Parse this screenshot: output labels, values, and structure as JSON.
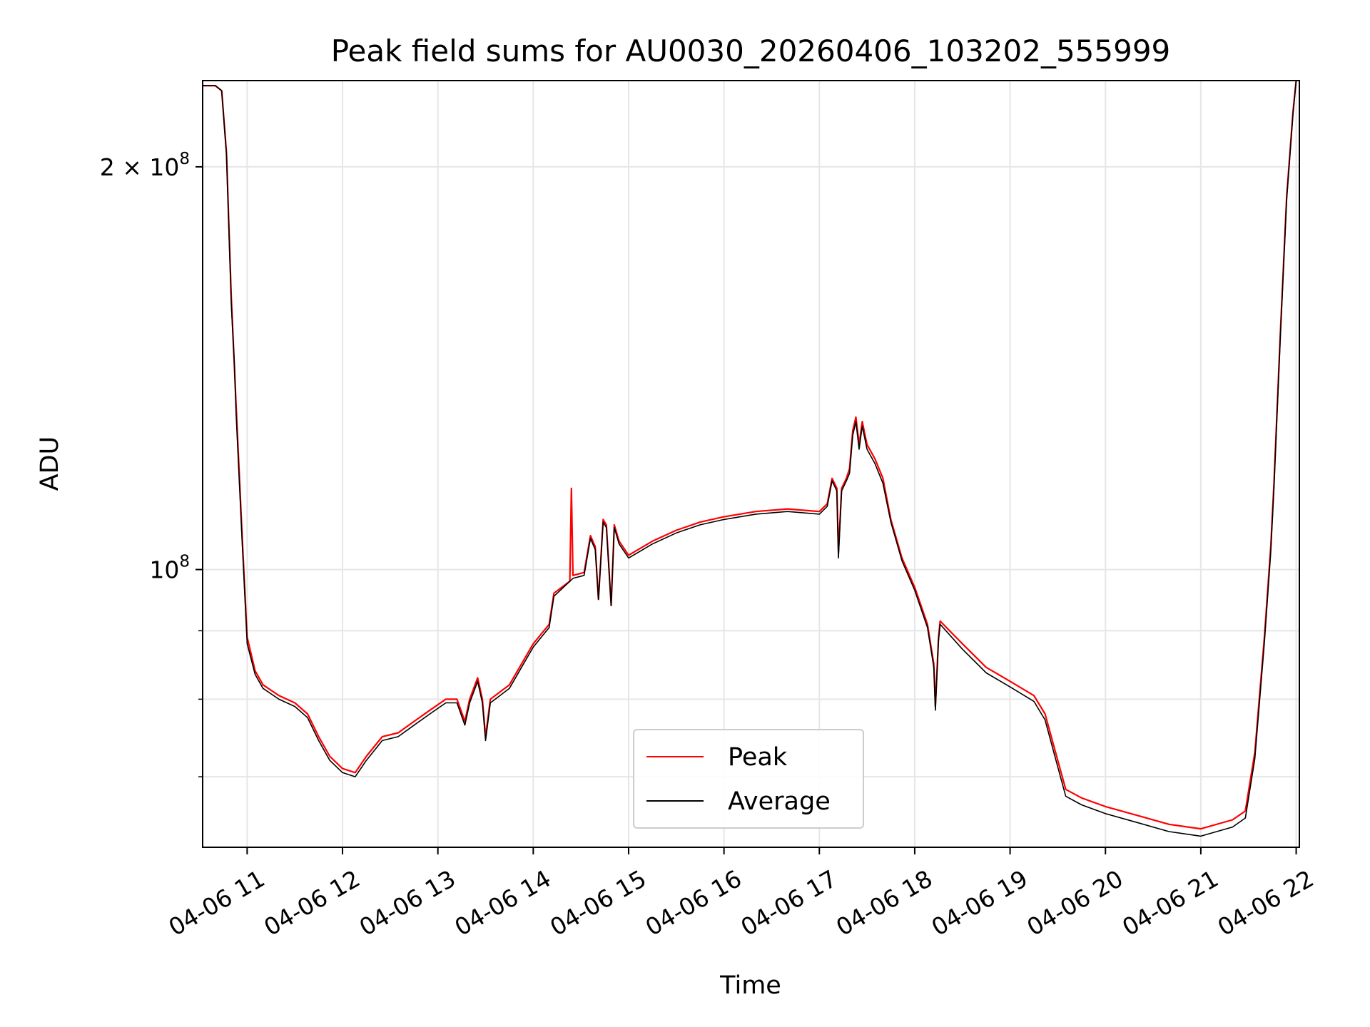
{
  "chart_data": {
    "type": "line",
    "title": "Peak field sums for AU0030_20260406_103202_555999",
    "xlabel": "Time",
    "ylabel": "ADU",
    "x_scale": "time",
    "y_scale": "log",
    "grid": true,
    "legend_position": "lower-center",
    "xlim": [
      "2026-04-06T10:32",
      "2026-04-06T22:02"
    ],
    "ylim": [
      62000000,
      232000000
    ],
    "x_ticks": [
      {
        "value": "2026-04-06T11:00",
        "label": "04-06 11"
      },
      {
        "value": "2026-04-06T12:00",
        "label": "04-06 12"
      },
      {
        "value": "2026-04-06T13:00",
        "label": "04-06 13"
      },
      {
        "value": "2026-04-06T14:00",
        "label": "04-06 14"
      },
      {
        "value": "2026-04-06T15:00",
        "label": "04-06 15"
      },
      {
        "value": "2026-04-06T16:00",
        "label": "04-06 16"
      },
      {
        "value": "2026-04-06T17:00",
        "label": "04-06 17"
      },
      {
        "value": "2026-04-06T18:00",
        "label": "04-06 18"
      },
      {
        "value": "2026-04-06T19:00",
        "label": "04-06 19"
      },
      {
        "value": "2026-04-06T20:00",
        "label": "04-06 20"
      },
      {
        "value": "2026-04-06T21:00",
        "label": "04-06 21"
      },
      {
        "value": "2026-04-06T22:00",
        "label": "04-06 22"
      }
    ],
    "y_major_ticks": [
      {
        "value": 100000000,
        "base": "10",
        "exp": "8",
        "prefix": ""
      },
      {
        "value": 200000000,
        "base": "10",
        "exp": "8",
        "prefix": "2 × "
      }
    ],
    "y_minor_ticks": [
      70000000,
      80000000,
      90000000
    ],
    "series": [
      {
        "name": "Peak",
        "color": "#ff0000",
        "points": [
          [
            "2026-04-06T10:32",
            230000000.0
          ],
          [
            "2026-04-06T10:40",
            230000000.0
          ],
          [
            "2026-04-06T10:44",
            228000000.0
          ],
          [
            "2026-04-06T10:47",
            205000000.0
          ],
          [
            "2026-04-06T10:50",
            160000000.0
          ],
          [
            "2026-04-06T10:53",
            133000000.0
          ],
          [
            "2026-04-06T10:57",
            105000000.0
          ],
          [
            "2026-04-06T11:00",
            89000000.0
          ],
          [
            "2026-04-06T11:05",
            84000000.0
          ],
          [
            "2026-04-06T11:10",
            82000000.0
          ],
          [
            "2026-04-06T11:20",
            80500000.0
          ],
          [
            "2026-04-06T11:30",
            79500000.0
          ],
          [
            "2026-04-06T11:38",
            78000000.0
          ],
          [
            "2026-04-06T11:45",
            75000000.0
          ],
          [
            "2026-04-06T11:52",
            72500000.0
          ],
          [
            "2026-04-06T12:00",
            71000000.0
          ],
          [
            "2026-04-06T12:08",
            70500000.0
          ],
          [
            "2026-04-06T12:15",
            72500000.0
          ],
          [
            "2026-04-06T12:25",
            75000000.0
          ],
          [
            "2026-04-06T12:35",
            75500000.0
          ],
          [
            "2026-04-06T12:45",
            77000000.0
          ],
          [
            "2026-04-06T12:55",
            78500000.0
          ],
          [
            "2026-04-06T13:05",
            80000000.0
          ],
          [
            "2026-04-06T13:12",
            80000000.0
          ],
          [
            "2026-04-06T13:17",
            77000000.0
          ],
          [
            "2026-04-06T13:20",
            80000000.0
          ],
          [
            "2026-04-06T13:25",
            83000000.0
          ],
          [
            "2026-04-06T13:28",
            80000000.0
          ],
          [
            "2026-04-06T13:30",
            75000000.0
          ],
          [
            "2026-04-06T13:33",
            80000000.0
          ],
          [
            "2026-04-06T13:45",
            82000000.0
          ],
          [
            "2026-04-06T14:00",
            88000000.0
          ],
          [
            "2026-04-06T14:10",
            91000000.0
          ],
          [
            "2026-04-06T14:13",
            96000000.0
          ],
          [
            "2026-04-06T14:23",
            98000000.0
          ],
          [
            "2026-04-06T14:24",
            115000000.0
          ],
          [
            "2026-04-06T14:25",
            99000000.0
          ],
          [
            "2026-04-06T14:32",
            99500000.0
          ],
          [
            "2026-04-06T14:36",
            106000000.0
          ],
          [
            "2026-04-06T14:39",
            104000000.0
          ],
          [
            "2026-04-06T14:41",
            95000000.0
          ],
          [
            "2026-04-06T14:44",
            109000000.0
          ],
          [
            "2026-04-06T14:46",
            108000000.0
          ],
          [
            "2026-04-06T14:49",
            94000000.0
          ],
          [
            "2026-04-06T14:51",
            108000000.0
          ],
          [
            "2026-04-06T14:54",
            105000000.0
          ],
          [
            "2026-04-06T15:00",
            102500000.0
          ],
          [
            "2026-04-06T15:15",
            105000000.0
          ],
          [
            "2026-04-06T15:30",
            107000000.0
          ],
          [
            "2026-04-06T15:45",
            108500000.0
          ],
          [
            "2026-04-06T16:00",
            109500000.0
          ],
          [
            "2026-04-06T16:20",
            110500000.0
          ],
          [
            "2026-04-06T16:40",
            111000000.0
          ],
          [
            "2026-04-06T17:00",
            110500000.0
          ],
          [
            "2026-04-06T17:05",
            112000000.0
          ],
          [
            "2026-04-06T17:08",
            117000000.0
          ],
          [
            "2026-04-06T17:11",
            115000000.0
          ],
          [
            "2026-04-06T17:12",
            103000000.0
          ],
          [
            "2026-04-06T17:14",
            115000000.0
          ],
          [
            "2026-04-06T17:17",
            117000000.0
          ],
          [
            "2026-04-06T17:19",
            119000000.0
          ],
          [
            "2026-04-06T17:21",
            127000000.0
          ],
          [
            "2026-04-06T17:23",
            130000000.0
          ],
          [
            "2026-04-06T17:25",
            124000000.0
          ],
          [
            "2026-04-06T17:27",
            129000000.0
          ],
          [
            "2026-04-06T17:30",
            124000000.0
          ],
          [
            "2026-04-06T17:35",
            121000000.0
          ],
          [
            "2026-04-06T17:40",
            117000000.0
          ],
          [
            "2026-04-06T17:45",
            109000000.0
          ],
          [
            "2026-04-06T17:52",
            102000000.0
          ],
          [
            "2026-04-06T18:00",
            97000000.0
          ],
          [
            "2026-04-06T18:08",
            91000000.0
          ],
          [
            "2026-04-06T18:12",
            85000000.0
          ],
          [
            "2026-04-06T18:13",
            79000000.0
          ],
          [
            "2026-04-06T18:15",
            89000000.0
          ],
          [
            "2026-04-06T18:16",
            91500000.0
          ],
          [
            "2026-04-06T18:30",
            88000000.0
          ],
          [
            "2026-04-06T18:45",
            84500000.0
          ],
          [
            "2026-04-06T19:00",
            82500000.0
          ],
          [
            "2026-04-06T19:15",
            80500000.0
          ],
          [
            "2026-04-06T19:22",
            78000000.0
          ],
          [
            "2026-04-06T19:30",
            72000000.0
          ],
          [
            "2026-04-06T19:35",
            68500000.0
          ],
          [
            "2026-04-06T19:45",
            67500000.0
          ],
          [
            "2026-04-06T20:00",
            66500000.0
          ],
          [
            "2026-04-06T20:20",
            65500000.0
          ],
          [
            "2026-04-06T20:40",
            64500000.0
          ],
          [
            "2026-04-06T21:00",
            64000000.0
          ],
          [
            "2026-04-06T21:20",
            65000000.0
          ],
          [
            "2026-04-06T21:28",
            66000000.0
          ],
          [
            "2026-04-06T21:34",
            73000000.0
          ],
          [
            "2026-04-06T21:40",
            89000000.0
          ],
          [
            "2026-04-06T21:44",
            104000000.0
          ],
          [
            "2026-04-06T21:46",
            116000000.0
          ],
          [
            "2026-04-06T21:50",
            150000000.0
          ],
          [
            "2026-04-06T21:54",
            190000000.0
          ],
          [
            "2026-04-06T21:58",
            220000000.0
          ],
          [
            "2026-04-06T22:00",
            232000000.0
          ]
        ]
      },
      {
        "name": "Average",
        "color": "#000000",
        "points": [
          [
            "2026-04-06T10:32",
            230000000.0
          ],
          [
            "2026-04-06T10:40",
            230000000.0
          ],
          [
            "2026-04-06T10:44",
            228000000.0
          ],
          [
            "2026-04-06T10:47",
            204000000.0
          ],
          [
            "2026-04-06T10:50",
            158000000.0
          ],
          [
            "2026-04-06T10:52",
            142000000.0
          ],
          [
            "2026-04-06T10:53",
            131000000.0
          ],
          [
            "2026-04-06T10:57",
            104000000.0
          ],
          [
            "2026-04-06T11:00",
            88000000.0
          ],
          [
            "2026-04-06T11:05",
            83500000.0
          ],
          [
            "2026-04-06T11:10",
            81500000.0
          ],
          [
            "2026-04-06T11:20",
            80000000.0
          ],
          [
            "2026-04-06T11:30",
            79000000.0
          ],
          [
            "2026-04-06T11:38",
            77500000.0
          ],
          [
            "2026-04-06T11:45",
            74500000.0
          ],
          [
            "2026-04-06T11:52",
            72000000.0
          ],
          [
            "2026-04-06T12:00",
            70500000.0
          ],
          [
            "2026-04-06T12:08",
            70000000.0
          ],
          [
            "2026-04-06T12:15",
            72000000.0
          ],
          [
            "2026-04-06T12:25",
            74500000.0
          ],
          [
            "2026-04-06T12:35",
            75000000.0
          ],
          [
            "2026-04-06T12:45",
            76500000.0
          ],
          [
            "2026-04-06T12:55",
            78000000.0
          ],
          [
            "2026-04-06T13:05",
            79500000.0
          ],
          [
            "2026-04-06T13:12",
            79500000.0
          ],
          [
            "2026-04-06T13:17",
            76500000.0
          ],
          [
            "2026-04-06T13:20",
            79500000.0
          ],
          [
            "2026-04-06T13:25",
            82500000.0
          ],
          [
            "2026-04-06T13:28",
            79500000.0
          ],
          [
            "2026-04-06T13:30",
            74500000.0
          ],
          [
            "2026-04-06T13:33",
            79500000.0
          ],
          [
            "2026-04-06T13:45",
            81500000.0
          ],
          [
            "2026-04-06T14:00",
            87500000.0
          ],
          [
            "2026-04-06T14:10",
            90500000.0
          ],
          [
            "2026-04-06T14:13",
            95500000.0
          ],
          [
            "2026-04-06T14:25",
            98500000.0
          ],
          [
            "2026-04-06T14:32",
            99000000.0
          ],
          [
            "2026-04-06T14:36",
            105500000.0
          ],
          [
            "2026-04-06T14:39",
            103500000.0
          ],
          [
            "2026-04-06T14:41",
            95000000.0
          ],
          [
            "2026-04-06T14:44",
            108500000.0
          ],
          [
            "2026-04-06T14:46",
            107500000.0
          ],
          [
            "2026-04-06T14:49",
            94000000.0
          ],
          [
            "2026-04-06T14:51",
            107500000.0
          ],
          [
            "2026-04-06T14:54",
            104500000.0
          ],
          [
            "2026-04-06T15:00",
            102000000.0
          ],
          [
            "2026-04-06T15:15",
            104500000.0
          ],
          [
            "2026-04-06T15:30",
            106500000.0
          ],
          [
            "2026-04-06T15:45",
            108000000.0
          ],
          [
            "2026-04-06T16:00",
            109000000.0
          ],
          [
            "2026-04-06T16:20",
            110000000.0
          ],
          [
            "2026-04-06T16:40",
            110500000.0
          ],
          [
            "2026-04-06T17:00",
            110000000.0
          ],
          [
            "2026-04-06T17:05",
            111500000.0
          ],
          [
            "2026-04-06T17:08",
            116500000.0
          ],
          [
            "2026-04-06T17:11",
            114500000.0
          ],
          [
            "2026-04-06T17:12",
            102000000.0
          ],
          [
            "2026-04-06T17:14",
            114500000.0
          ],
          [
            "2026-04-06T17:17",
            116500000.0
          ],
          [
            "2026-04-06T17:19",
            118000000.0
          ],
          [
            "2026-04-06T17:21",
            126000000.0
          ],
          [
            "2026-04-06T17:23",
            129000000.0
          ],
          [
            "2026-04-06T17:25",
            123000000.0
          ],
          [
            "2026-04-06T17:27",
            128000000.0
          ],
          [
            "2026-04-06T17:30",
            123000000.0
          ],
          [
            "2026-04-06T17:35",
            120000000.0
          ],
          [
            "2026-04-06T17:40",
            116000000.0
          ],
          [
            "2026-04-06T17:45",
            108500000.0
          ],
          [
            "2026-04-06T17:52",
            101500000.0
          ],
          [
            "2026-04-06T18:00",
            96500000.0
          ],
          [
            "2026-04-06T18:08",
            90500000.0
          ],
          [
            "2026-04-06T18:12",
            84500000.0
          ],
          [
            "2026-04-06T18:13",
            78500000.0
          ],
          [
            "2026-04-06T18:15",
            88500000.0
          ],
          [
            "2026-04-06T18:16",
            91000000.0
          ],
          [
            "2026-04-06T18:30",
            87200000.0
          ],
          [
            "2026-04-06T18:45",
            83700000.0
          ],
          [
            "2026-04-06T19:00",
            81700000.0
          ],
          [
            "2026-04-06T19:15",
            79700000.0
          ],
          [
            "2026-04-06T19:22",
            77200000.0
          ],
          [
            "2026-04-06T19:30",
            71200000.0
          ],
          [
            "2026-04-06T19:35",
            67700000.0
          ],
          [
            "2026-04-06T19:45",
            66700000.0
          ],
          [
            "2026-04-06T20:00",
            65700000.0
          ],
          [
            "2026-04-06T20:20",
            64700000.0
          ],
          [
            "2026-04-06T20:40",
            63700000.0
          ],
          [
            "2026-04-06T21:00",
            63200000.0
          ],
          [
            "2026-04-06T21:20",
            64200000.0
          ],
          [
            "2026-04-06T21:28",
            65200000.0
          ],
          [
            "2026-04-06T21:34",
            72200000.0
          ],
          [
            "2026-04-06T21:40",
            88200000.0
          ],
          [
            "2026-04-06T21:44",
            103000000.0
          ],
          [
            "2026-04-06T21:46",
            115000000.0
          ],
          [
            "2026-04-06T21:50",
            149000000.0
          ],
          [
            "2026-04-06T21:54",
            189000000.0
          ],
          [
            "2026-04-06T21:58",
            219000000.0
          ],
          [
            "2026-04-06T22:00",
            232000000.0
          ]
        ]
      }
    ]
  }
}
